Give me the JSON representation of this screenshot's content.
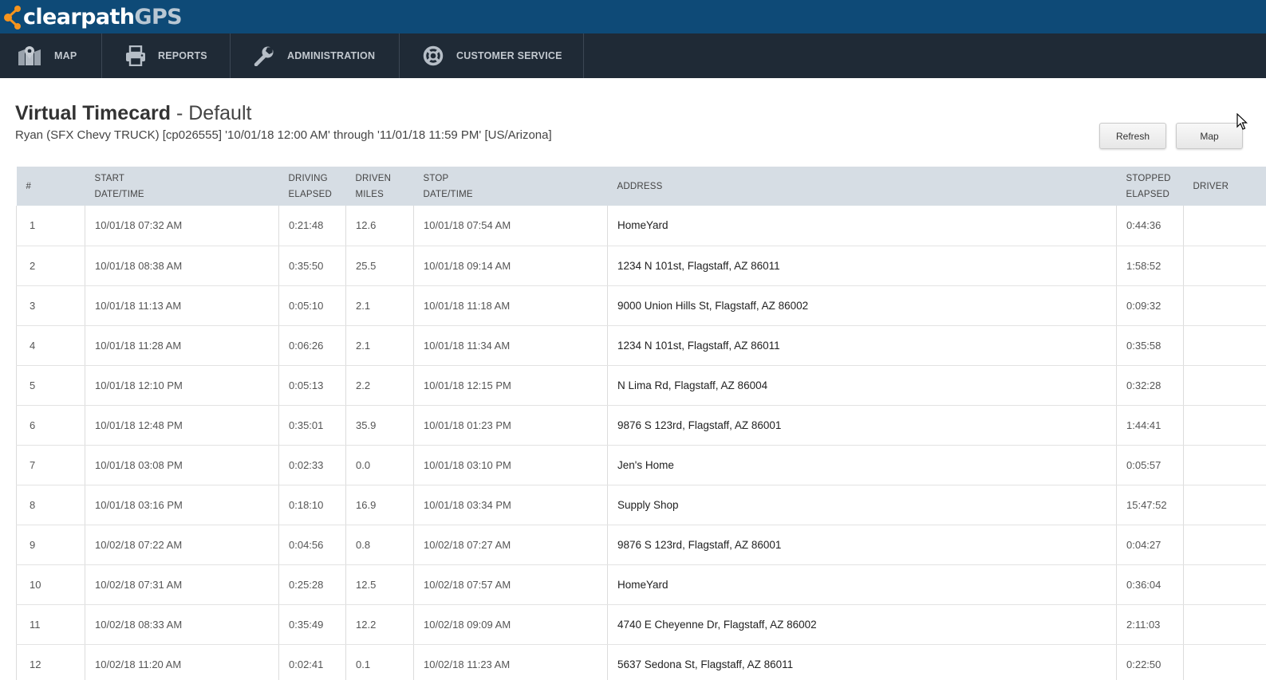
{
  "brand": {
    "name_main": "clearpath",
    "name_accent": "GPS",
    "accent_color": "#f7941d",
    "bar_color": "#0e4a77"
  },
  "nav": {
    "items": [
      {
        "label": "MAP",
        "icon": "map-icon"
      },
      {
        "label": "REPORTS",
        "icon": "printer-icon"
      },
      {
        "label": "ADMINISTRATION",
        "icon": "wrench-icon"
      },
      {
        "label": "CUSTOMER SERVICE",
        "icon": "lifebuoy-icon"
      }
    ]
  },
  "header": {
    "title": "Virtual Timecard",
    "separator": "-",
    "view": "Default",
    "subtitle": "Ryan (SFX Chevy TRUCK) [cp026555] '10/01/18 12:00 AM' through '11/01/18 11:59 PM' [US/Arizona]"
  },
  "buttons": {
    "refresh": "Refresh",
    "map": "Map"
  },
  "table": {
    "headers": [
      {
        "line1": "#",
        "line2": ""
      },
      {
        "line1": "START",
        "line2": "DATE/TIME"
      },
      {
        "line1": "DRIVING",
        "line2": "ELAPSED"
      },
      {
        "line1": "DRIVEN",
        "line2": "MILES"
      },
      {
        "line1": "STOP",
        "line2": "DATE/TIME"
      },
      {
        "line1": "ADDRESS",
        "line2": ""
      },
      {
        "line1": "STOPPED",
        "line2": "ELAPSED"
      },
      {
        "line1": "DRIVER",
        "line2": ""
      }
    ],
    "rows": [
      [
        "1",
        "10/01/18 07:32 AM",
        "0:21:48",
        "12.6",
        "10/01/18 07:54 AM",
        "HomeYard",
        "0:44:36",
        ""
      ],
      [
        "2",
        "10/01/18 08:38 AM",
        "0:35:50",
        "25.5",
        "10/01/18 09:14 AM",
        "1234 N 101st, Flagstaff, AZ 86011",
        "1:58:52",
        ""
      ],
      [
        "3",
        "10/01/18 11:13 AM",
        "0:05:10",
        "2.1",
        "10/01/18 11:18 AM",
        "9000 Union Hills St, Flagstaff, AZ 86002",
        "0:09:32",
        ""
      ],
      [
        "4",
        "10/01/18 11:28 AM",
        "0:06:26",
        "2.1",
        "10/01/18 11:34 AM",
        "1234 N 101st, Flagstaff, AZ 86011",
        "0:35:58",
        ""
      ],
      [
        "5",
        "10/01/18 12:10 PM",
        "0:05:13",
        "2.2",
        "10/01/18 12:15 PM",
        "N Lima Rd, Flagstaff, AZ 86004",
        "0:32:28",
        ""
      ],
      [
        "6",
        "10/01/18 12:48 PM",
        "0:35:01",
        "35.9",
        "10/01/18 01:23 PM",
        "9876 S 123rd, Flagstaff, AZ 86001",
        "1:44:41",
        ""
      ],
      [
        "7",
        "10/01/18 03:08 PM",
        "0:02:33",
        "0.0",
        "10/01/18 03:10 PM",
        "Jen's Home",
        "0:05:57",
        ""
      ],
      [
        "8",
        "10/01/18 03:16 PM",
        "0:18:10",
        "16.9",
        "10/01/18 03:34 PM",
        "Supply Shop",
        "15:47:52",
        ""
      ],
      [
        "9",
        "10/02/18 07:22 AM",
        "0:04:56",
        "0.8",
        "10/02/18 07:27 AM",
        "9876 S 123rd, Flagstaff, AZ 86001",
        "0:04:27",
        ""
      ],
      [
        "10",
        "10/02/18 07:31 AM",
        "0:25:28",
        "12.5",
        "10/02/18 07:57 AM",
        "HomeYard",
        "0:36:04",
        ""
      ],
      [
        "11",
        "10/02/18 08:33 AM",
        "0:35:49",
        "12.2",
        "10/02/18 09:09 AM",
        "4740 E Cheyenne Dr, Flagstaff, AZ 86002",
        "2:11:03",
        ""
      ],
      [
        "12",
        "10/02/18 11:20 AM",
        "0:02:41",
        "0.1",
        "10/02/18 11:23 AM",
        "5637 Sedona St, Flagstaff, AZ 86011",
        "0:22:50",
        ""
      ]
    ]
  }
}
